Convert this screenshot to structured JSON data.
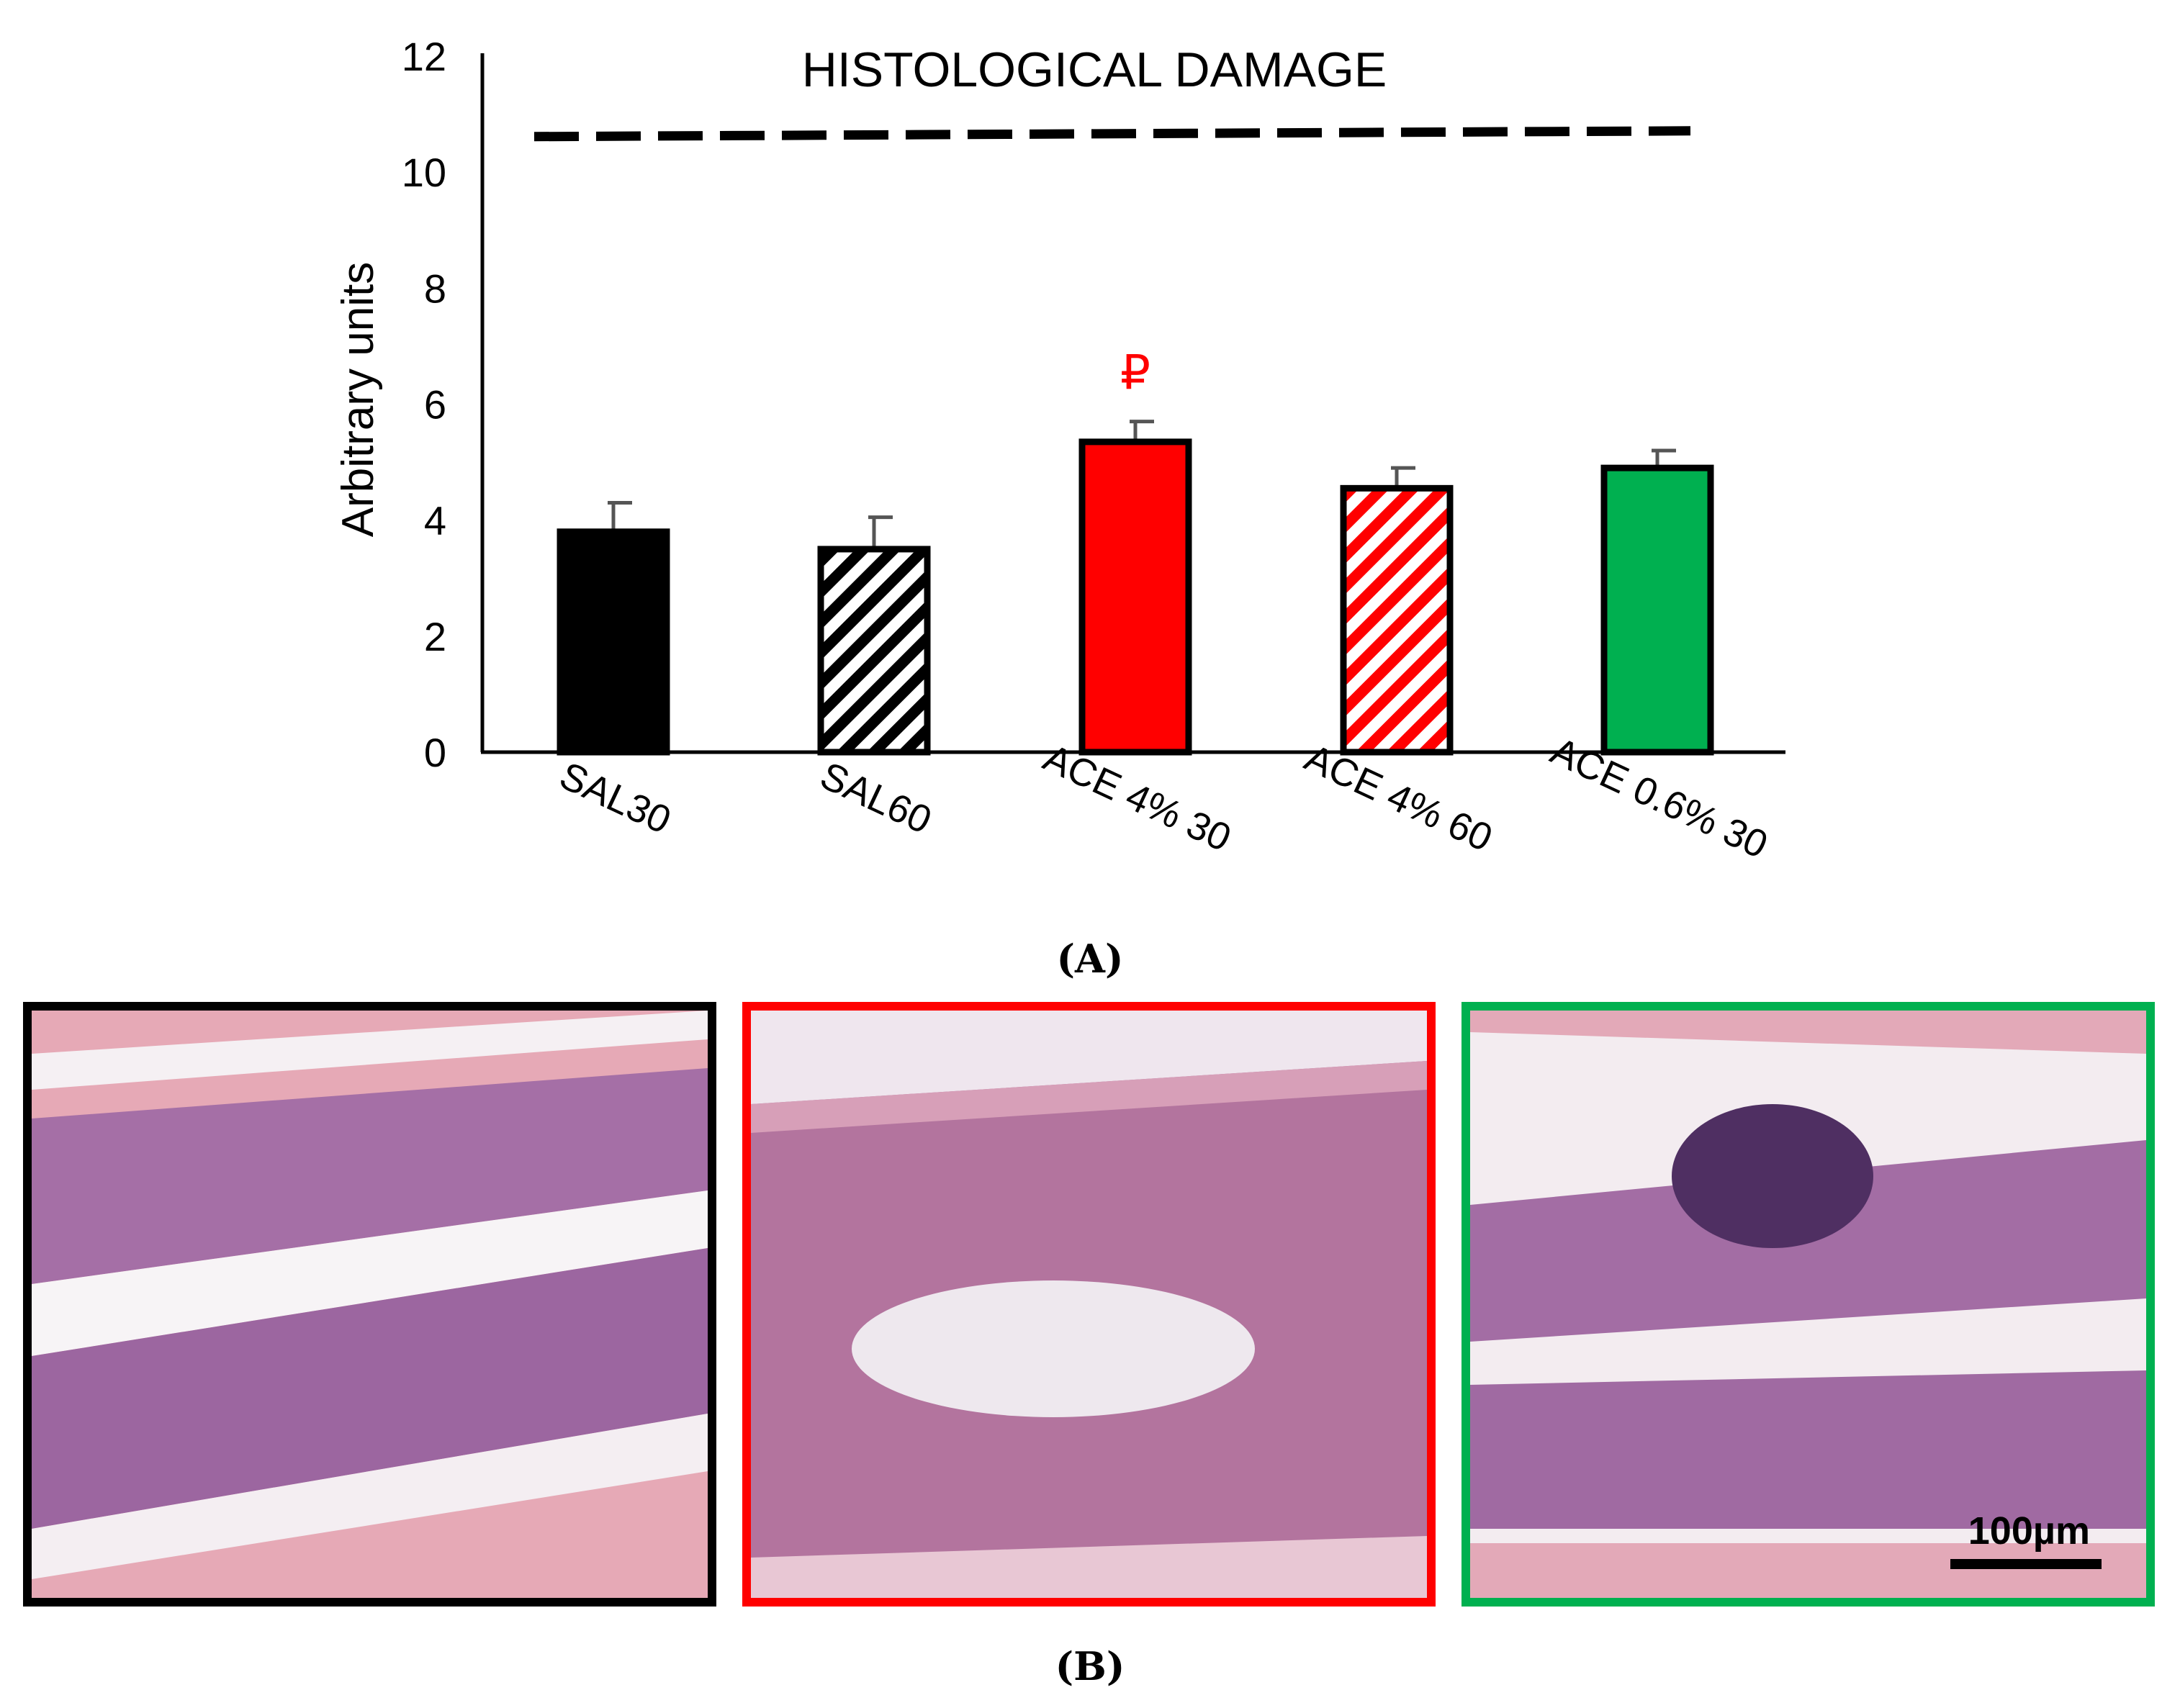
{
  "chart_data": {
    "type": "bar",
    "title": "HISTOLOGICAL DAMAGE",
    "ylabel": "Arbitrary units",
    "xlabel": "",
    "ylim": [
      0,
      12
    ],
    "yticks": [
      "0",
      "2",
      "4",
      "6",
      "8",
      "10",
      "12"
    ],
    "categories": [
      "SAL30",
      "SAL60",
      "ACE 4% 30",
      "ACE 4% 60",
      "ACE 0.6% 30"
    ],
    "values": [
      3.8,
      3.5,
      5.35,
      4.55,
      4.9
    ],
    "errors": [
      0.5,
      0.55,
      0.35,
      0.35,
      0.3
    ],
    "colors": [
      "#000000",
      "#000000",
      "#ff0000",
      "#ff0000",
      "#00b050"
    ],
    "patterns": [
      "solid",
      "hatch",
      "solid",
      "hatch",
      "solid"
    ],
    "reference_line": {
      "value": 10.65,
      "style": "dashed"
    },
    "annotations": [
      {
        "category": "ACE 4% 30",
        "text": "₽",
        "color": "#ff0000"
      }
    ]
  },
  "figure": {
    "caption_a": "(A)",
    "caption_b": "(B)",
    "panels": [
      {
        "border_color": "#000000"
      },
      {
        "border_color": "#ff0000"
      },
      {
        "border_color": "#00b050"
      }
    ],
    "scale_bar_label": "100µm"
  }
}
